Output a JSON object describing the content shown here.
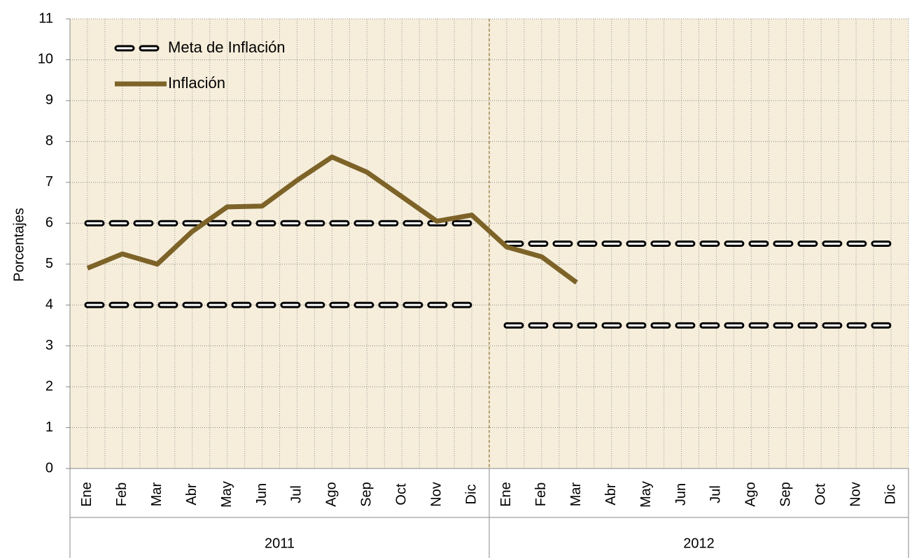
{
  "chart_data": {
    "type": "line",
    "y_label": "Porcentajes",
    "categories": [
      "Ene",
      "Feb",
      "Mar",
      "Abr",
      "May",
      "Jun",
      "Jul",
      "Ago",
      "Sep",
      "Oct",
      "Nov",
      "Dic",
      "Ene",
      "Feb",
      "Mar",
      "Abr",
      "May",
      "Jun",
      "Jul",
      "Ago",
      "Sep",
      "Oct",
      "Nov",
      "Dic"
    ],
    "groups": [
      "2011",
      "2012"
    ],
    "ylim": [
      0,
      11
    ],
    "yticks": [
      0,
      1,
      2,
      3,
      4,
      5,
      6,
      7,
      8,
      9,
      10,
      11
    ],
    "grid": true,
    "series": [
      {
        "name": "Meta de Inflación",
        "style": "dashed",
        "color": "#000000",
        "values": [
          6,
          6,
          6,
          6,
          6,
          6,
          6,
          6,
          6,
          6,
          6,
          6,
          null,
          null,
          null,
          null,
          null,
          null,
          null,
          null,
          null,
          null,
          null,
          null
        ]
      },
      {
        "style": "dashed",
        "color": "#000000",
        "values": [
          4,
          4,
          4,
          4,
          4,
          4,
          4,
          4,
          4,
          4,
          4,
          4,
          null,
          null,
          null,
          null,
          null,
          null,
          null,
          null,
          null,
          null,
          null,
          null
        ]
      },
      {
        "style": "dashed",
        "color": "#000000",
        "values": [
          null,
          null,
          null,
          null,
          null,
          null,
          null,
          null,
          null,
          null,
          null,
          null,
          5.5,
          5.5,
          5.5,
          5.5,
          5.5,
          5.5,
          5.5,
          5.5,
          5.5,
          5.5,
          5.5,
          5.5
        ]
      },
      {
        "style": "dashed",
        "color": "#000000",
        "values": [
          null,
          null,
          null,
          null,
          null,
          null,
          null,
          null,
          null,
          null,
          null,
          null,
          3.5,
          3.5,
          3.5,
          3.5,
          3.5,
          3.5,
          3.5,
          3.5,
          3.5,
          3.5,
          3.5,
          3.5
        ]
      },
      {
        "name": "Inflación",
        "style": "solid",
        "color": "#7d6328",
        "values": [
          4.9,
          5.25,
          5.0,
          5.8,
          6.4,
          6.42,
          7.05,
          7.62,
          7.25,
          6.65,
          6.05,
          6.2,
          5.42,
          5.18,
          4.55,
          null,
          null,
          null,
          null,
          null,
          null,
          null,
          null,
          null
        ]
      }
    ]
  }
}
